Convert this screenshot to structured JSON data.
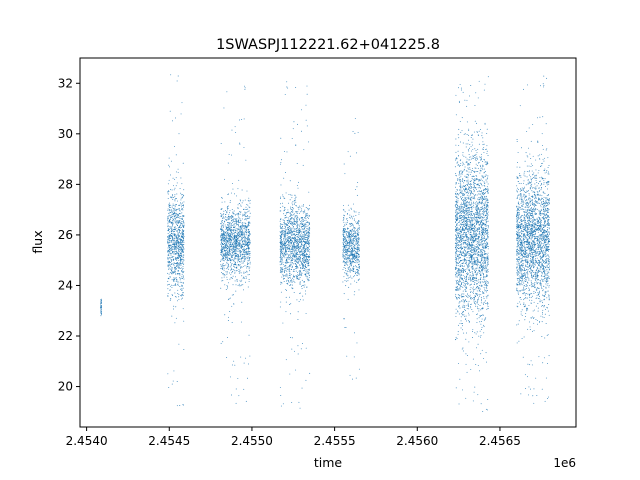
{
  "chart_data": {
    "type": "scatter",
    "title": "1SWASPJ112221.62+041225.8",
    "xlabel": "time",
    "ylabel": "flux",
    "x_offset_label": "1e6",
    "xlim": [
      2453960,
      2456960
    ],
    "ylim": [
      18.4,
      33.0
    ],
    "x_ticks": [
      2454000,
      2454500,
      2455000,
      2455500,
      2456000,
      2456500
    ],
    "x_tick_labels": [
      "2.4540",
      "2.4545",
      "2.4550",
      "2.4555",
      "2.4560",
      "2.4565"
    ],
    "y_ticks": [
      20,
      22,
      24,
      26,
      28,
      30,
      32
    ],
    "y_tick_labels": [
      "20",
      "22",
      "24",
      "26",
      "28",
      "30",
      "32"
    ],
    "grid": false,
    "legend": "none",
    "marker_color": "#1f77b4",
    "series": [
      {
        "observing_seasons": [
          {
            "x_start": 2454085,
            "x_end": 2454090,
            "flux_center": 23.2,
            "flux_spread": 0.2,
            "flux_min": 22.8,
            "flux_max": 23.5
          },
          {
            "x_start": 2454490,
            "x_end": 2454590,
            "flux_center": 25.7,
            "flux_spread": 1.0,
            "flux_min": 19.2,
            "flux_max": 32.4
          },
          {
            "x_start": 2454810,
            "x_end": 2454990,
            "flux_center": 25.7,
            "flux_spread": 0.7,
            "flux_min": 19.2,
            "flux_max": 32.3
          },
          {
            "x_start": 2455170,
            "x_end": 2455350,
            "flux_center": 25.6,
            "flux_spread": 0.8,
            "flux_min": 19.0,
            "flux_max": 32.4
          },
          {
            "x_start": 2455550,
            "x_end": 2455650,
            "flux_center": 25.5,
            "flux_spread": 0.6,
            "flux_min": 20.1,
            "flux_max": 30.7
          },
          {
            "x_start": 2456230,
            "x_end": 2456430,
            "flux_center": 26.0,
            "flux_spread": 1.6,
            "flux_min": 19.0,
            "flux_max": 32.4
          },
          {
            "x_start": 2456600,
            "x_end": 2456800,
            "flux_center": 25.8,
            "flux_spread": 1.3,
            "flux_min": 19.2,
            "flux_max": 32.4
          }
        ]
      }
    ]
  }
}
